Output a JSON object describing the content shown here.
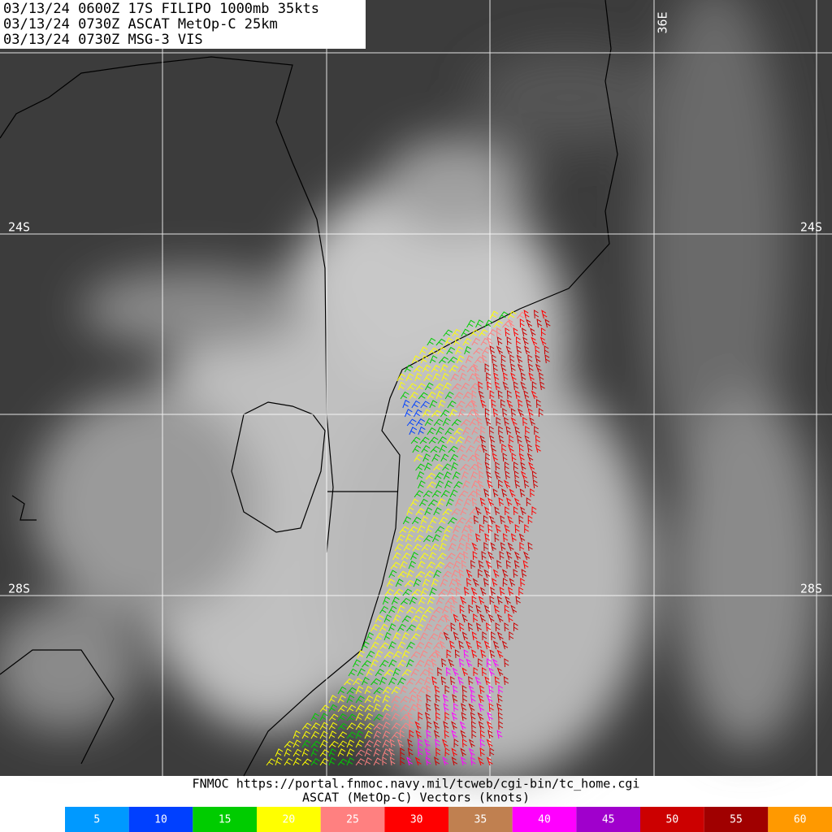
{
  "header": {
    "lines": [
      "03/13/24 0600Z  17S FILIPO 1000mb 35kts",
      "03/13/24 0730Z  ASCAT MetOp-C 25km",
      "03/13/24 0730Z  MSG-3 VIS"
    ]
  },
  "grid_labels": {
    "lat_24_west": "24S",
    "lat_24_east": "24S",
    "lat_28_west": "28S",
    "lat_28_east": "28S",
    "lon_36": "36E"
  },
  "footer": {
    "source": "FNMOC https://portal.fnmoc.navy.mil/tcweb/cgi-bin/tc_home.cgi",
    "caption": "ASCAT (MetOp-C) Vectors (knots)"
  },
  "legend": {
    "items": [
      {
        "value": 5,
        "color": "#0099ff"
      },
      {
        "value": 10,
        "color": "#0040ff"
      },
      {
        "value": 15,
        "color": "#00cc00"
      },
      {
        "value": 20,
        "color": "#ffff00"
      },
      {
        "value": 25,
        "color": "#ff8080"
      },
      {
        "value": 30,
        "color": "#ff0000"
      },
      {
        "value": 35,
        "color": "#c08050"
      },
      {
        "value": 40,
        "color": "#ff00ff"
      },
      {
        "value": 45,
        "color": "#a000cc"
      },
      {
        "value": 50,
        "color": "#cc0000"
      },
      {
        "value": 55,
        "color": "#a00000"
      },
      {
        "value": 60,
        "color": "#ff9900"
      }
    ]
  }
}
